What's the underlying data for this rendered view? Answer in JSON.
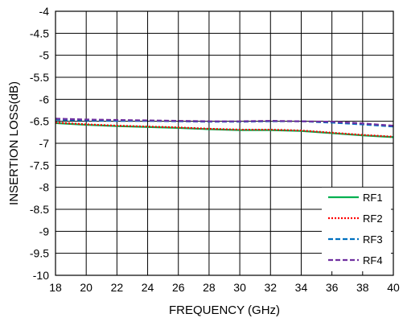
{
  "chart_data": {
    "type": "line",
    "title": "",
    "xlabel": "FREQUENCY (GHz)",
    "ylabel": "INSERTION LOSS(dB)",
    "xlim": [
      18,
      40
    ],
    "ylim": [
      -10,
      -4
    ],
    "x_ticks": [
      18,
      20,
      22,
      24,
      26,
      28,
      30,
      32,
      34,
      36,
      38,
      40
    ],
    "y_ticks": [
      -4,
      -4.5,
      -5,
      -5.5,
      -6,
      -6.5,
      -7,
      -7.5,
      -8,
      -8.5,
      -9,
      -9.5,
      -10
    ],
    "grid": true,
    "legend_position": "bottom-right",
    "series": [
      {
        "name": "RF1",
        "color": "#00b050",
        "dash": "solid",
        "x": [
          18,
          20,
          22,
          24,
          26,
          28,
          30,
          32,
          34,
          36,
          38,
          40
        ],
        "y": [
          -6.54,
          -6.58,
          -6.61,
          -6.63,
          -6.65,
          -6.68,
          -6.7,
          -6.7,
          -6.72,
          -6.77,
          -6.82,
          -6.86
        ]
      },
      {
        "name": "RF2",
        "color": "#ff0000",
        "dash": "dotted",
        "x": [
          18,
          20,
          22,
          24,
          26,
          28,
          30,
          32,
          34,
          36,
          38,
          40
        ],
        "y": [
          -6.53,
          -6.57,
          -6.6,
          -6.62,
          -6.64,
          -6.67,
          -6.69,
          -6.69,
          -6.71,
          -6.76,
          -6.81,
          -6.85
        ]
      },
      {
        "name": "RF3",
        "color": "#0070c0",
        "dash": "dashed",
        "x": [
          18,
          20,
          22,
          24,
          26,
          28,
          30,
          32,
          34,
          36,
          38,
          40
        ],
        "y": [
          -6.46,
          -6.48,
          -6.49,
          -6.49,
          -6.5,
          -6.51,
          -6.51,
          -6.5,
          -6.5,
          -6.53,
          -6.57,
          -6.62
        ]
      },
      {
        "name": "RF4",
        "color": "#7030a0",
        "dash": "dashed",
        "x": [
          18,
          20,
          22,
          24,
          26,
          28,
          30,
          32,
          34,
          36,
          38,
          40
        ],
        "y": [
          -6.44,
          -6.46,
          -6.47,
          -6.48,
          -6.49,
          -6.5,
          -6.5,
          -6.49,
          -6.5,
          -6.51,
          -6.55,
          -6.6
        ]
      }
    ]
  }
}
